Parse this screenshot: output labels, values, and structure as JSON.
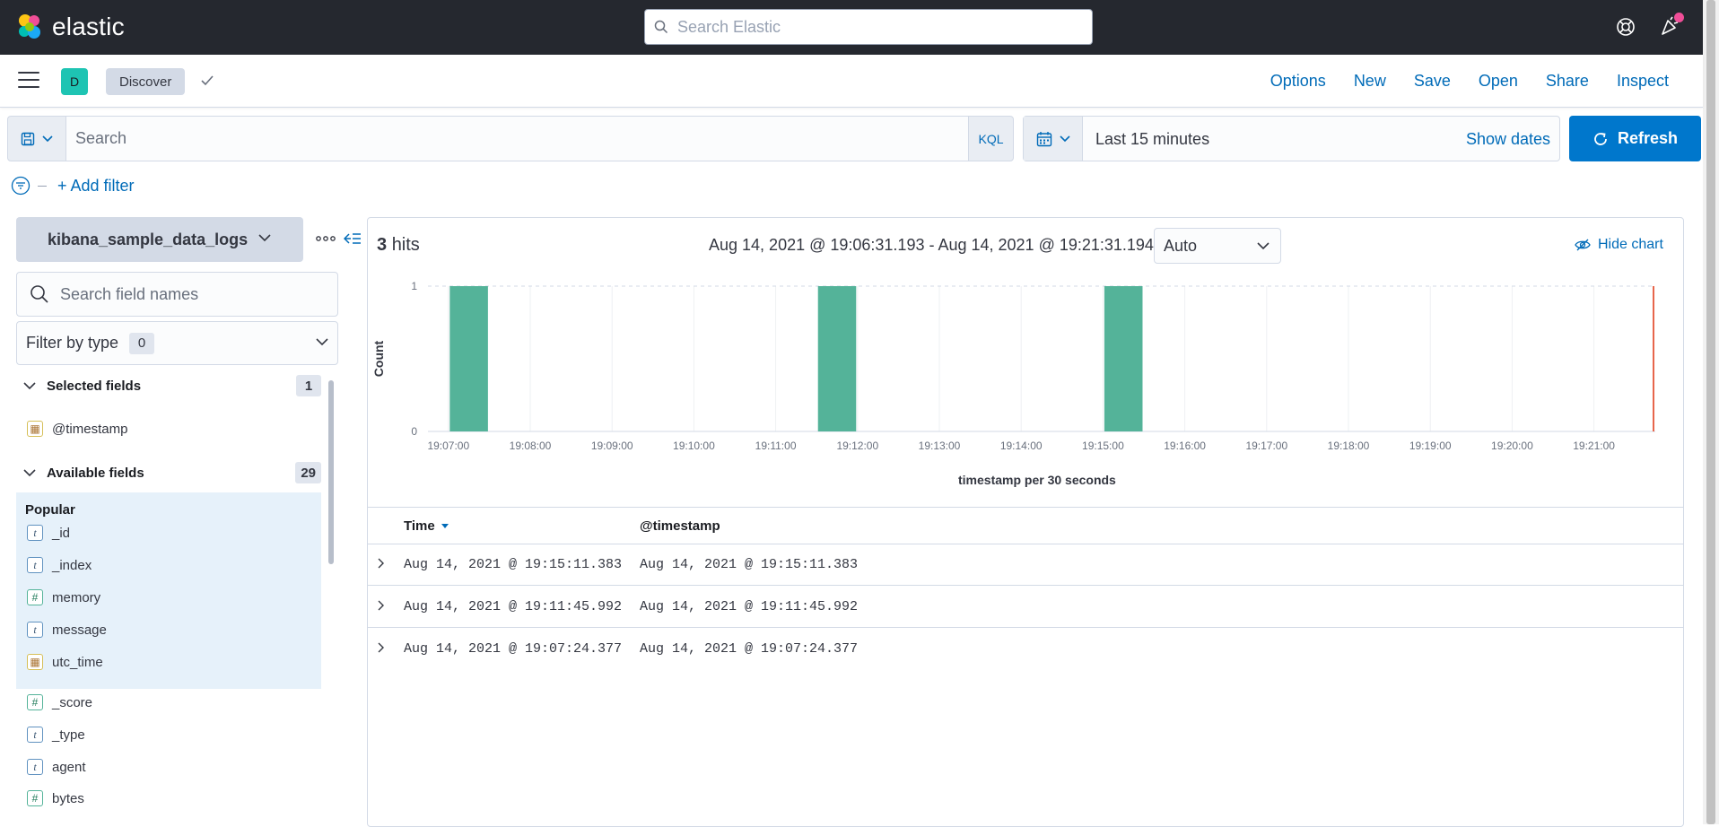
{
  "header": {
    "brand": "elastic",
    "search_placeholder": "Search Elastic"
  },
  "app_bar": {
    "space_initial": "D",
    "breadcrumb": "Discover",
    "nav": [
      "Options",
      "New",
      "Save",
      "Open",
      "Share",
      "Inspect"
    ]
  },
  "query_bar": {
    "placeholder": "Search",
    "language": "KQL",
    "date_label": "Last 15 minutes",
    "show_dates": "Show dates",
    "refresh": "Refresh",
    "add_filter": "+ Add filter"
  },
  "sidebar": {
    "index_pattern": "kibana_sample_data_logs",
    "field_search_placeholder": "Search field names",
    "filter_by_type": "Filter by type",
    "filter_count": "0",
    "selected_title": "Selected fields",
    "selected_count": "1",
    "selected_fields": [
      {
        "name": "@timestamp",
        "type": "date"
      }
    ],
    "available_title": "Available fields",
    "available_count": "29",
    "popular_title": "Popular",
    "popular_fields": [
      {
        "name": "_id",
        "type": "string"
      },
      {
        "name": "_index",
        "type": "string"
      },
      {
        "name": "memory",
        "type": "number"
      },
      {
        "name": "message",
        "type": "string"
      },
      {
        "name": "utc_time",
        "type": "date"
      }
    ],
    "other_fields": [
      {
        "name": "_score",
        "type": "number"
      },
      {
        "name": "_type",
        "type": "string"
      },
      {
        "name": "agent",
        "type": "string"
      },
      {
        "name": "bytes",
        "type": "number"
      }
    ]
  },
  "results": {
    "hits_count": "3",
    "hits_label": "hits",
    "time_range": "Aug 14, 2021 @ 19:06:31.193 - Aug 14, 2021 @ 19:21:31.194",
    "interval": "Auto",
    "hide_chart": "Hide chart"
  },
  "chart_data": {
    "type": "bar",
    "x": [
      "19:07:00",
      "19:11:30",
      "19:15:00"
    ],
    "values": [
      1,
      1,
      1
    ],
    "tick_labels": [
      "19:07:00",
      "19:08:00",
      "19:09:00",
      "19:10:00",
      "19:11:00",
      "19:12:00",
      "19:13:00",
      "19:14:00",
      "19:15:00",
      "19:16:00",
      "19:17:00",
      "19:18:00",
      "19:19:00",
      "19:20:00",
      "19:21:00"
    ],
    "y_ticks": [
      "0",
      "1"
    ],
    "ylim": [
      0,
      1
    ],
    "xlabel": "timestamp per 30 seconds",
    "ylabel": "Count",
    "bar_color": "#54b399",
    "now_marker_color": "#e7664c"
  },
  "table": {
    "col_time": "Time",
    "col_timestamp": "@timestamp",
    "rows": [
      {
        "time": "Aug 14, 2021 @ 19:15:11.383",
        "timestamp": "Aug 14, 2021 @ 19:15:11.383"
      },
      {
        "time": "Aug 14, 2021 @ 19:11:45.992",
        "timestamp": "Aug 14, 2021 @ 19:11:45.992"
      },
      {
        "time": "Aug 14, 2021 @ 19:07:24.377",
        "timestamp": "Aug 14, 2021 @ 19:07:24.377"
      }
    ]
  },
  "colors": {
    "header_bg": "#25282f",
    "link": "#006bb8",
    "primary": "#0077cc",
    "avatar": "#1ec4b3",
    "notification": "#f04e98"
  }
}
